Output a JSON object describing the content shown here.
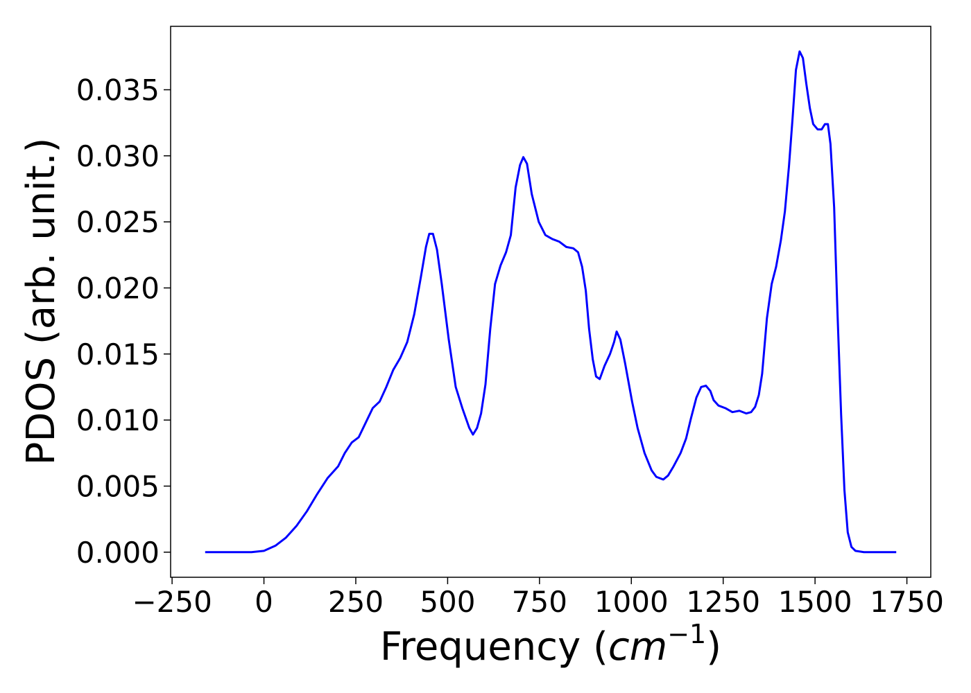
{
  "chart_data": {
    "type": "line",
    "xlabel": [
      "Frequency (",
      "cm",
      "−1",
      ")"
    ],
    "ylabel": "PDOS (arb. unit.)",
    "x": [
      -160,
      -34,
      0,
      32,
      60,
      89,
      117,
      145,
      173,
      202,
      220,
      239,
      258,
      277,
      296,
      315,
      333,
      352,
      371,
      390,
      409,
      427,
      441,
      450,
      460,
      471,
      484,
      503,
      522,
      540,
      559,
      569,
      580,
      591,
      603,
      616,
      629,
      644,
      659,
      672,
      685,
      697,
      706,
      716,
      729,
      748,
      766,
      785,
      804,
      823,
      842,
      855,
      866,
      876,
      885,
      895,
      904,
      914,
      927,
      942,
      953,
      960,
      970,
      983,
      1002,
      1017,
      1036,
      1055,
      1068,
      1087,
      1100,
      1115,
      1134,
      1149,
      1162,
      1177,
      1190,
      1203,
      1215,
      1224,
      1237,
      1256,
      1275,
      1294,
      1313,
      1326,
      1337,
      1347,
      1356,
      1369,
      1382,
      1394,
      1407,
      1418,
      1429,
      1439,
      1448,
      1458,
      1467,
      1476,
      1486,
      1495,
      1507,
      1518,
      1527,
      1535,
      1542,
      1552,
      1561,
      1571,
      1580,
      1589,
      1599,
      1610,
      1633,
      1721
    ],
    "series": [
      {
        "name": "PDOS",
        "color": "#0000ff",
        "values": [
          0,
          0,
          0.0001,
          0.0005,
          0.0011,
          0.002,
          0.0031,
          0.0044,
          0.0056,
          0.0065,
          0.0075,
          0.0083,
          0.0087,
          0.0098,
          0.0109,
          0.0114,
          0.0125,
          0.0138,
          0.0147,
          0.0159,
          0.018,
          0.0208,
          0.0231,
          0.0241,
          0.0241,
          0.0229,
          0.0203,
          0.0161,
          0.0125,
          0.0109,
          0.0094,
          0.0089,
          0.0094,
          0.0105,
          0.0127,
          0.0169,
          0.0203,
          0.0217,
          0.0227,
          0.024,
          0.0276,
          0.0293,
          0.0299,
          0.0294,
          0.0271,
          0.025,
          0.024,
          0.0237,
          0.0235,
          0.0231,
          0.023,
          0.0227,
          0.0216,
          0.0198,
          0.0169,
          0.0146,
          0.0133,
          0.0131,
          0.0141,
          0.015,
          0.0159,
          0.0167,
          0.0161,
          0.0143,
          0.0114,
          0.0094,
          0.0075,
          0.0062,
          0.0057,
          0.0055,
          0.0058,
          0.0065,
          0.0075,
          0.0086,
          0.0101,
          0.0117,
          0.0125,
          0.0126,
          0.0122,
          0.0115,
          0.0111,
          0.0109,
          0.0106,
          0.0107,
          0.0105,
          0.0106,
          0.011,
          0.0119,
          0.0135,
          0.0177,
          0.0203,
          0.0216,
          0.0236,
          0.0258,
          0.0292,
          0.0329,
          0.0365,
          0.0379,
          0.0374,
          0.0355,
          0.0336,
          0.0324,
          0.032,
          0.032,
          0.0324,
          0.0324,
          0.0309,
          0.0261,
          0.0182,
          0.0104,
          0.0047,
          0.0015,
          0.0004,
          0.0001,
          0,
          0
        ]
      }
    ],
    "xlim": [
      -254,
      1815
    ],
    "ylim": [
      -0.0019,
      0.0398
    ],
    "xticks": [
      {
        "value": -250,
        "label": "−250"
      },
      0,
      250,
      500,
      750,
      1000,
      1250,
      1500,
      1750
    ],
    "yticks": [
      {
        "value": 0,
        "label": "0.000"
      },
      {
        "value": 0.005,
        "label": "0.005"
      },
      {
        "value": 0.01,
        "label": "0.010"
      },
      {
        "value": 0.015,
        "label": "0.015"
      },
      {
        "value": 0.02,
        "label": "0.020"
      },
      {
        "value": 0.025,
        "label": "0.025"
      },
      {
        "value": 0.03,
        "label": "0.030"
      },
      {
        "value": 0.035,
        "label": "0.035"
      }
    ],
    "grid": false
  }
}
